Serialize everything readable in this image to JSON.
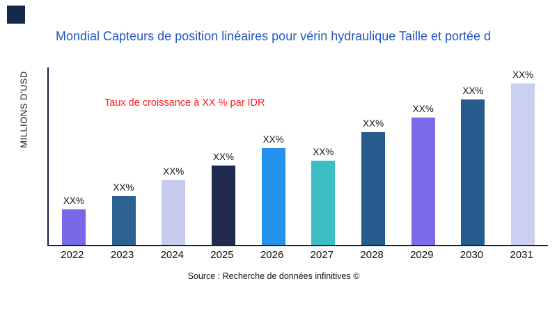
{
  "logo": {
    "color": "#16294b"
  },
  "title": {
    "text": "Mondial Capteurs de position linéaires pour vérin hydraulique Taille et portée d",
    "color": "#2456c4"
  },
  "annotation": {
    "text": "Taux de croissance à XX % par IDR",
    "color": "#ff1a1a"
  },
  "source": "Source : Recherche de données infinitives ©",
  "chart_data": {
    "type": "bar",
    "title": "Mondial Capteurs de position linéaires pour vérin hydraulique Taille et portée d",
    "ylabel": "MILLIONS D'USD",
    "xlabel": "",
    "categories": [
      "2022",
      "2023",
      "2024",
      "2025",
      "2026",
      "2027",
      "2028",
      "2029",
      "2030",
      "2031"
    ],
    "values": [
      22,
      30,
      40,
      49,
      60,
      52,
      70,
      79,
      90,
      100
    ],
    "value_note": "relative heights estimated from pixels; numeric labels masked as XX% in source image",
    "bar_labels": [
      "XX%",
      "XX%",
      "XX%",
      "XX%",
      "XX%",
      "XX%",
      "XX%",
      "XX%",
      "XX%",
      "XX%"
    ],
    "bar_colors": [
      "#7668e6",
      "#2c628f",
      "#c7ccef",
      "#20294e",
      "#2492eb",
      "#3bbec6",
      "#265c8d",
      "#7a6ce8",
      "#265c8d",
      "#cbd0f2"
    ],
    "ylim": [
      0,
      110
    ],
    "grid": false,
    "legend": false,
    "annotation": "Taux de croissance à XX % par IDR"
  }
}
